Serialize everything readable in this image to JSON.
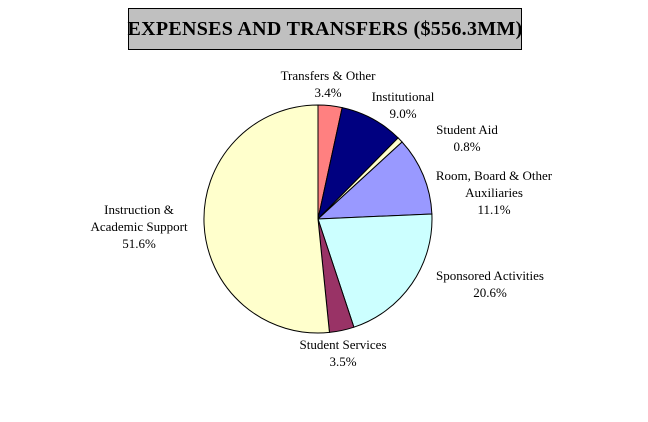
{
  "chart_data": {
    "type": "pie",
    "title": "EXPENSES AND TRANSFERS ($556.3MM)",
    "direction": "clockwise",
    "start_angle_deg": 0,
    "legend_position": "none",
    "labels_position": "outside",
    "title_box_bg": "#C0C0C0",
    "title_box_border": "#000000",
    "slice_outline_color": "#000000",
    "slices": [
      {
        "label": "Transfers & Other",
        "label_lines": [
          "Transfers & Other"
        ],
        "pct": 3.4,
        "pct_label": "3.4%",
        "color": "#FF8080"
      },
      {
        "label": "Institutional",
        "label_lines": [
          "Institutional"
        ],
        "pct": 9.0,
        "pct_label": "9.0%",
        "color": "#000080"
      },
      {
        "label": "Student Aid",
        "label_lines": [
          "Student Aid"
        ],
        "pct": 0.8,
        "pct_label": "0.8%",
        "color": "#FFFFCC"
      },
      {
        "label": "Room, Board & Other Auxiliaries",
        "label_lines": [
          "Room, Board & Other",
          "Auxiliaries"
        ],
        "pct": 11.1,
        "pct_label": "11.1%",
        "color": "#9999FF"
      },
      {
        "label": "Sponsored Activities",
        "label_lines": [
          "Sponsored Activities"
        ],
        "pct": 20.6,
        "pct_label": "20.6%",
        "color": "#CCFFFF"
      },
      {
        "label": "Student Services",
        "label_lines": [
          "Student Services"
        ],
        "pct": 3.5,
        "pct_label": "3.5%",
        "color": "#993366"
      },
      {
        "label": "Instruction & Academic Support",
        "label_lines": [
          "Instruction &",
          "Academic Support"
        ],
        "pct": 51.6,
        "pct_label": "51.6%",
        "color": "#FFFFCC"
      }
    ]
  }
}
